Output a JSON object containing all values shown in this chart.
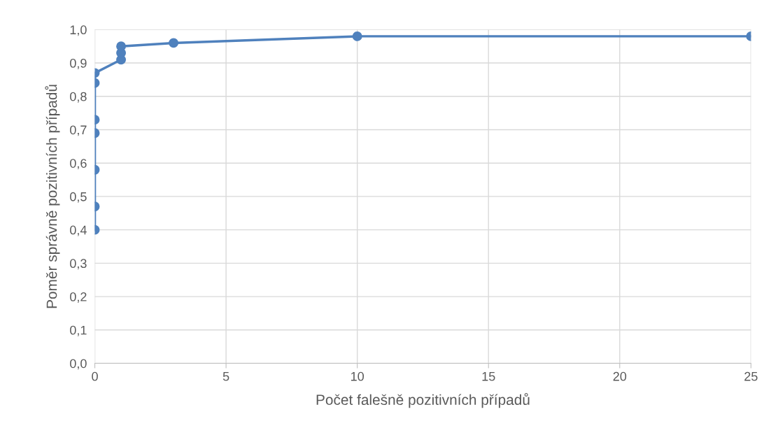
{
  "chart_data": {
    "type": "line",
    "xlabel": "Počet falešně pozitivních případů",
    "ylabel": "Poměr správně pozitivních případů",
    "x": [
      0,
      0,
      0,
      0,
      0,
      0,
      0,
      1,
      1,
      1,
      3,
      10,
      25
    ],
    "series": [
      {
        "color": "#4f81bd",
        "values": [
          0.4,
          0.47,
          0.58,
          0.69,
          0.73,
          0.84,
          0.87,
          0.91,
          0.93,
          0.95,
          0.96,
          0.98,
          0.98
        ]
      }
    ],
    "xlim": [
      0,
      25
    ],
    "xticks": [
      0,
      5,
      10,
      15,
      20,
      25
    ],
    "ylim": [
      0,
      1
    ],
    "yticks": [
      {
        "value": 0,
        "label": "0,0"
      },
      {
        "value": 0.1,
        "label": "0,1"
      },
      {
        "value": 0.2,
        "label": "0,2"
      },
      {
        "value": 0.3,
        "label": "0,3"
      },
      {
        "value": 0.4,
        "label": "0,4"
      },
      {
        "value": 0.5,
        "label": "0,5"
      },
      {
        "value": 0.6,
        "label": "0,6"
      },
      {
        "value": 0.7,
        "label": "0,7"
      },
      {
        "value": 0.8,
        "label": "0,8"
      },
      {
        "value": 0.9,
        "label": "0,9"
      },
      {
        "value": 1,
        "label": "1,0"
      }
    ],
    "grid": true,
    "marker": "circle",
    "line_style": "solid"
  }
}
